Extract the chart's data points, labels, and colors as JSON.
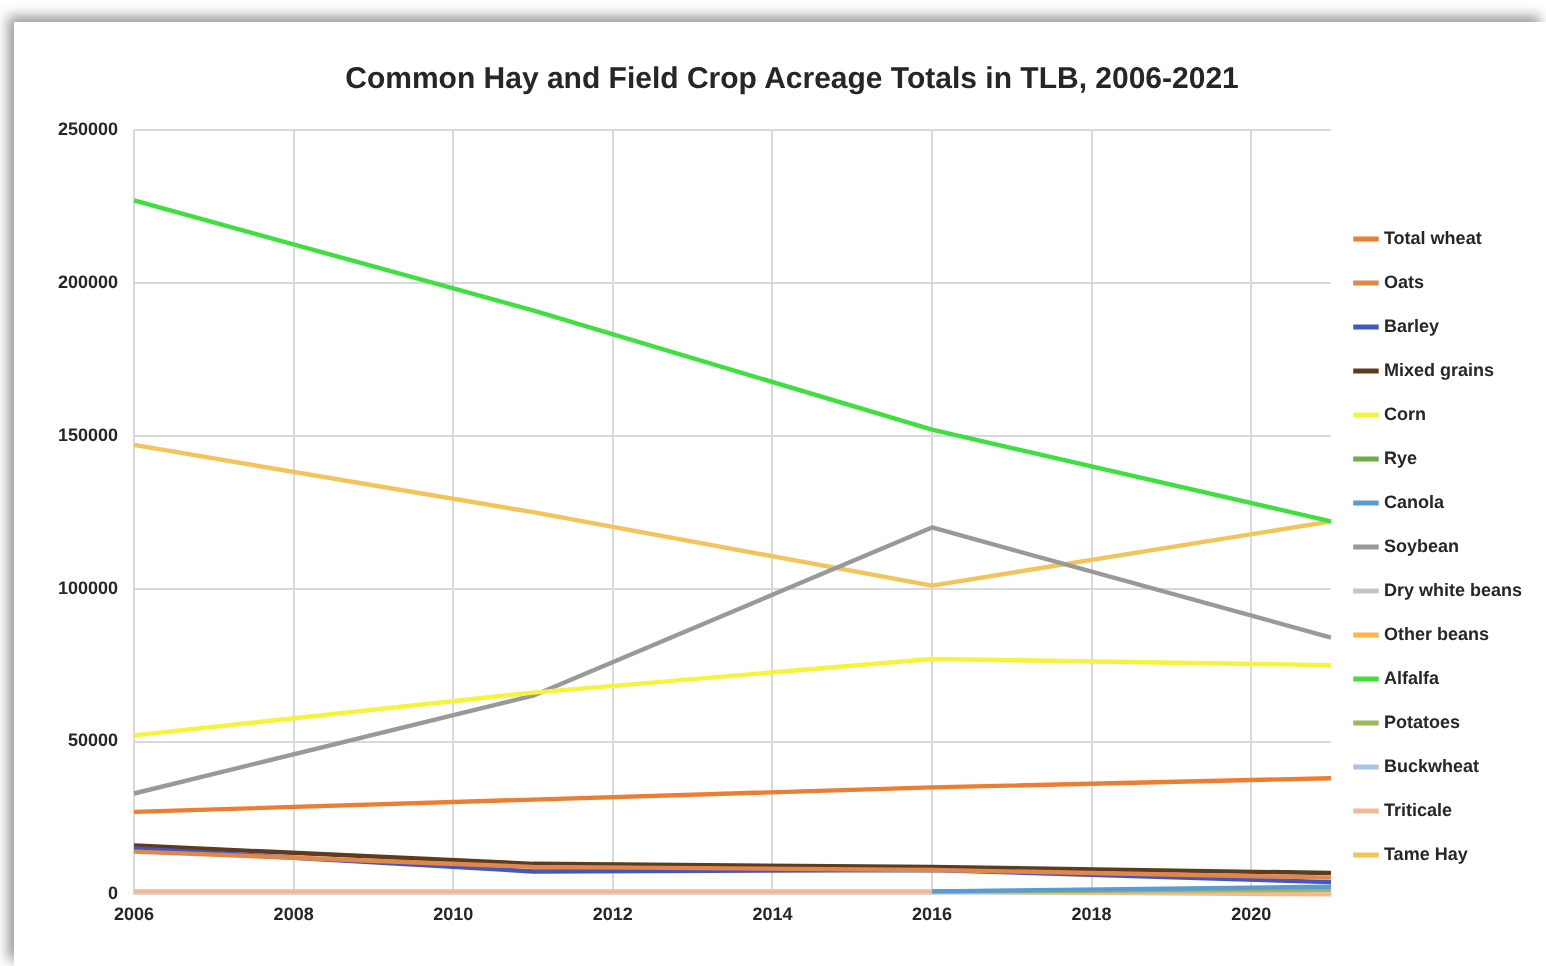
{
  "chart_data": {
    "type": "line",
    "title": "Common Hay and Field Crop Acreage Totals in TLB, 2006-2021",
    "x": [
      2006,
      2011,
      2016,
      2021
    ],
    "xlim": [
      2006,
      2021
    ],
    "xticks": [
      2006,
      2008,
      2010,
      2012,
      2014,
      2016,
      2018,
      2020
    ],
    "ylim": [
      0,
      250000
    ],
    "yticks": [
      0,
      50000,
      100000,
      150000,
      200000,
      250000
    ],
    "grid": true,
    "legend": "right",
    "series": [
      {
        "name": "Total wheat",
        "color": "#ed7d31",
        "values": [
          27000,
          31000,
          35000,
          38000
        ]
      },
      {
        "name": "Oats",
        "color": "#e2874a",
        "values": [
          14000,
          9000,
          8000,
          5500
        ]
      },
      {
        "name": "Barley",
        "color": "#4455c4",
        "values": [
          15000,
          7500,
          8000,
          4000
        ]
      },
      {
        "name": "Mixed grains",
        "color": "#5c3b1e",
        "values": [
          16000,
          10000,
          9000,
          7000
        ]
      },
      {
        "name": "Corn",
        "color": "#f4f43a",
        "values": [
          52000,
          66000,
          77000,
          75000
        ]
      },
      {
        "name": "Rye",
        "color": "#70ad47",
        "values": [
          null,
          null,
          null,
          null
        ]
      },
      {
        "name": "Canola",
        "color": "#5b9bd5",
        "values": [
          null,
          null,
          1000,
          2500
        ]
      },
      {
        "name": "Soybean",
        "color": "#999999",
        "values": [
          33000,
          65000,
          120000,
          84000
        ]
      },
      {
        "name": "Dry white beans",
        "color": "#c4c4c4",
        "values": [
          null,
          null,
          null,
          null
        ]
      },
      {
        "name": "Other beans",
        "color": "#ffb347",
        "values": [
          null,
          null,
          null,
          null
        ]
      },
      {
        "name": "Alfalfa",
        "color": "#3de03d",
        "values": [
          227000,
          191000,
          152000,
          122000
        ]
      },
      {
        "name": "Potatoes",
        "color": "#9bbb59",
        "values": [
          null,
          null,
          1000,
          1500
        ]
      },
      {
        "name": "Buckwheat",
        "color": "#a9c4eb",
        "values": [
          null,
          null,
          null,
          null
        ]
      },
      {
        "name": "Triticale",
        "color": "#f4b992",
        "values": [
          1000,
          1000,
          1000,
          0
        ]
      },
      {
        "name": "Tame Hay",
        "color": "#f2c45a",
        "values": [
          147000,
          125000,
          101000,
          122000
        ]
      }
    ]
  }
}
